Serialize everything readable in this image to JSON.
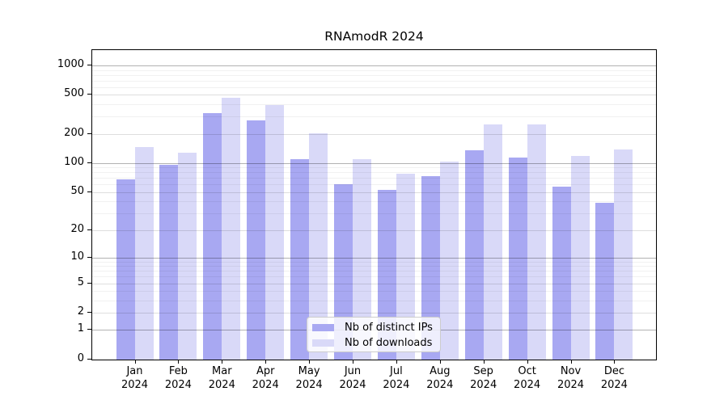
{
  "chart_data": {
    "type": "bar",
    "title": "RNAmodR 2024",
    "categories": [
      "Jan",
      "Feb",
      "Mar",
      "Apr",
      "May",
      "Jun",
      "Jul",
      "Aug",
      "Sep",
      "Oct",
      "Nov",
      "Dec"
    ],
    "category_year": "2024",
    "series": [
      {
        "name": "Nb of distinct IPs",
        "color": "#a8a8f2",
        "values": [
          68,
          96,
          324,
          272,
          110,
          60,
          53,
          74,
          136,
          115,
          57,
          39
        ]
      },
      {
        "name": "Nb of downloads",
        "color": "#d9d9f8",
        "values": [
          146,
          127,
          470,
          393,
          202,
          110,
          78,
          103,
          248,
          249,
          119,
          138
        ]
      }
    ],
    "yscale": "log1p",
    "ylim": [
      0,
      1435
    ],
    "yticks": [
      0,
      1,
      2,
      5,
      10,
      20,
      50,
      100,
      200,
      500,
      1000
    ],
    "major_gridlines": [
      1,
      10,
      100,
      1000
    ],
    "mid_gridlines": [
      2,
      5,
      20,
      50,
      200,
      500
    ],
    "minor_gridlines": [
      3,
      4,
      6,
      7,
      8,
      9,
      30,
      40,
      60,
      70,
      80,
      90,
      300,
      400,
      600,
      700,
      800,
      900
    ],
    "grid": "on",
    "legend_position": "lower center",
    "colors": {
      "axis": "#000000",
      "major_grid": "#b3b3b3",
      "mid_grid": "#dbdbdb",
      "minor_grid": "#ededed"
    }
  }
}
